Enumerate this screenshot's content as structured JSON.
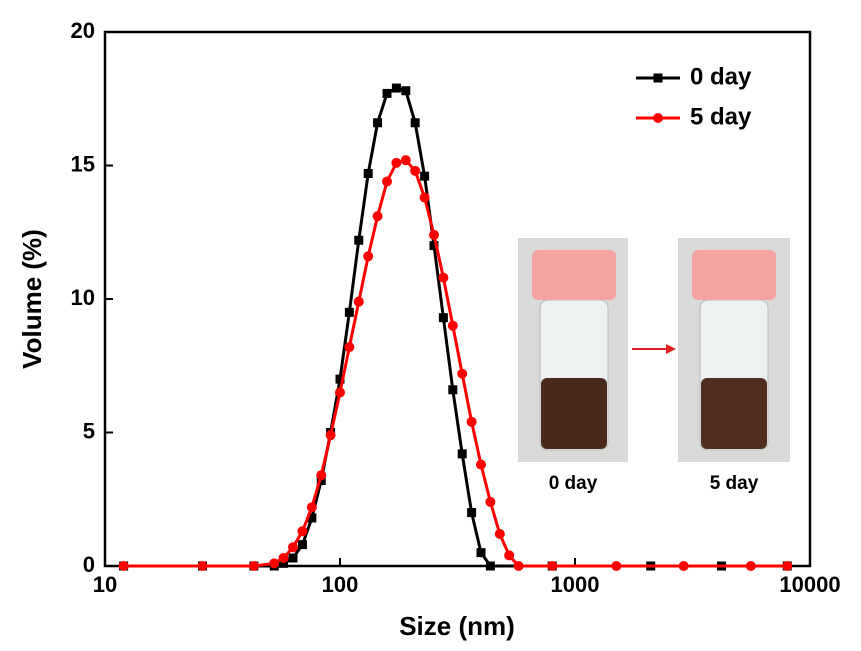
{
  "chart_data": {
    "type": "line",
    "x_label": "Size (nm)",
    "y_label": "Volume (%)",
    "xscale": "log",
    "xlim": [
      10,
      10000
    ],
    "xticks": [
      10,
      100,
      1000,
      10000
    ],
    "ylim": [
      0,
      20
    ],
    "yticks": [
      0,
      5,
      10,
      15,
      20
    ],
    "legend": "upper right",
    "inset_labels": [
      "0 day",
      "5 day"
    ],
    "series": [
      {
        "name": "0 day",
        "color": "#000000",
        "marker": "square",
        "x": [
          12,
          26,
          43,
          52.5,
          57.5,
          63.1,
          69.2,
          75.9,
          83.2,
          91.2,
          100,
          109.6,
          120.2,
          131.8,
          144.5,
          158.5,
          173.8,
          190.5,
          208.9,
          229.1,
          251.2,
          275.4,
          302,
          331.1,
          363.1,
          398.1,
          436.5,
          800,
          2100,
          4200,
          8000
        ],
        "values": [
          0,
          0,
          0,
          0,
          0.1,
          0.3,
          0.8,
          1.8,
          3.2,
          5.0,
          7.0,
          9.5,
          12.2,
          14.7,
          16.6,
          17.7,
          17.9,
          17.8,
          16.6,
          14.6,
          12.0,
          9.3,
          6.6,
          4.2,
          2.0,
          0.5,
          0,
          0,
          0,
          0,
          0
        ]
      },
      {
        "name": "5 day",
        "color": "#ff0000",
        "marker": "circle",
        "x": [
          12,
          26,
          43,
          52.5,
          57.5,
          63.1,
          69.2,
          75.9,
          83.2,
          91.2,
          100,
          109.6,
          120.2,
          131.8,
          144.5,
          158.5,
          173.8,
          190.5,
          208.9,
          229.1,
          251.2,
          275.4,
          302,
          331.1,
          363.1,
          398.1,
          436.5,
          478.6,
          524.8,
          575.4,
          800,
          1500,
          2900,
          5600,
          8000
        ],
        "values": [
          0,
          0,
          0,
          0.1,
          0.3,
          0.7,
          1.3,
          2.2,
          3.4,
          4.9,
          6.5,
          8.2,
          9.9,
          11.6,
          13.1,
          14.4,
          15.1,
          15.2,
          14.8,
          13.8,
          12.4,
          10.8,
          9.0,
          7.2,
          5.4,
          3.8,
          2.4,
          1.2,
          0.4,
          0,
          0,
          0,
          0,
          0,
          0
        ]
      }
    ]
  }
}
